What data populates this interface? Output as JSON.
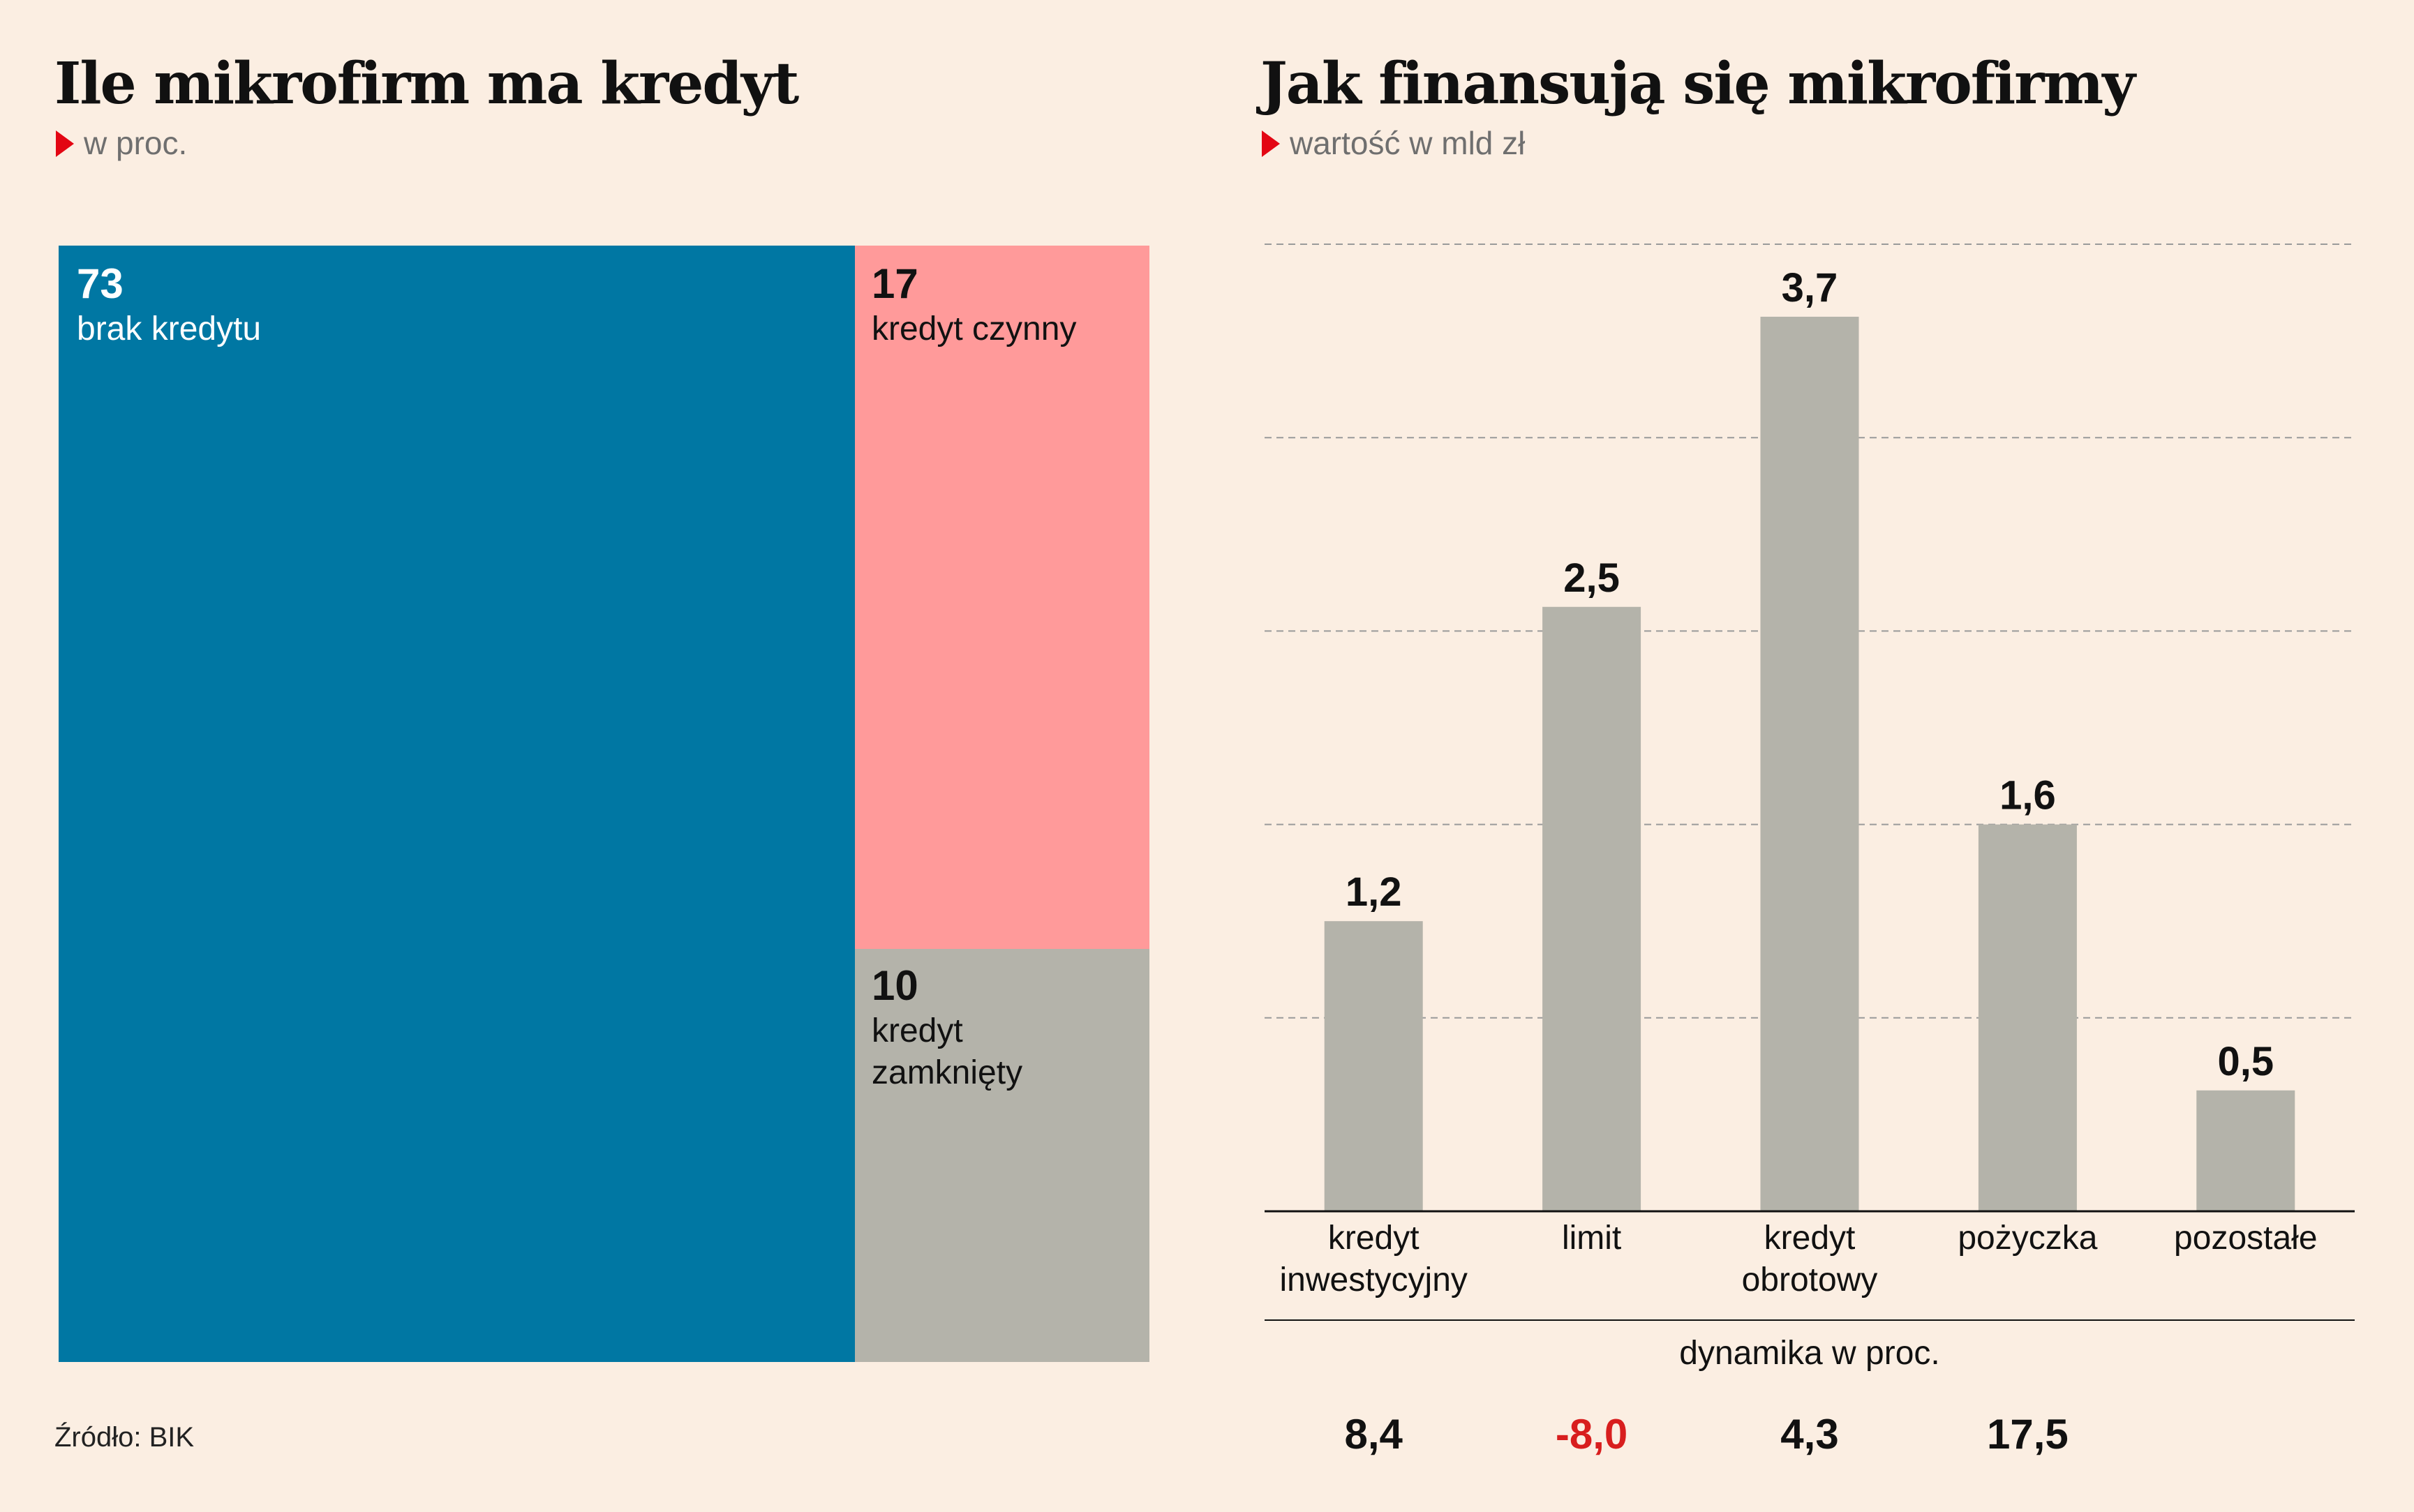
{
  "colors": {
    "background": "#fbeee2",
    "brak": "#0077a3",
    "czynny": "#ff9a9a",
    "zamkniety": "#b4b3aa",
    "bar": "#b4b3aa",
    "accent_red": "#e30613",
    "negative": "#d81e1e",
    "grid": "#9a9a9a"
  },
  "left": {
    "title": "Ile mikrofirm ma kredyt",
    "subtitle": "w proc.",
    "source": "Źródło: BIK"
  },
  "right": {
    "title": "Jak finansują się mikrofirmy",
    "subtitle": "wartość w mld zł"
  },
  "chart_data": [
    {
      "type": "treemap",
      "title": "Ile mikrofirm ma kredyt",
      "subtitle": "w proc.",
      "items": [
        {
          "value": 73,
          "value_label": "73",
          "label_lines": [
            "brak kredytu"
          ]
        },
        {
          "value": 17,
          "value_label": "17",
          "label_lines": [
            "kredyt czynny"
          ]
        },
        {
          "value": 10,
          "value_label": "10",
          "label_lines": [
            "kredyt",
            "zamknięty"
          ]
        }
      ]
    },
    {
      "type": "bar",
      "title": "Jak finansują się mikrofirmy",
      "subtitle": "wartość w mld zł",
      "categories": [
        [
          "kredyt",
          "inwestycyjny"
        ],
        [
          "limit"
        ],
        [
          "kredyt",
          "obrotowy"
        ],
        [
          "pożyczka"
        ],
        [
          "pozostałe"
        ]
      ],
      "values": [
        1.2,
        2.5,
        3.7,
        1.6,
        0.5
      ],
      "value_labels": [
        "1,2",
        "2,5",
        "3,7",
        "1,6",
        "0,5"
      ],
      "ylim": [
        0,
        4
      ],
      "grid": true,
      "gridline_values": [
        0.8,
        1.6,
        2.4,
        3.2,
        4.0
      ],
      "secondary": {
        "label": "dynamika w proc.",
        "values": [
          8.4,
          -8.0,
          4.3,
          17.5,
          null
        ],
        "value_labels": [
          "8,4",
          "-8,0",
          "4,3",
          "17,5",
          ""
        ]
      }
    }
  ]
}
